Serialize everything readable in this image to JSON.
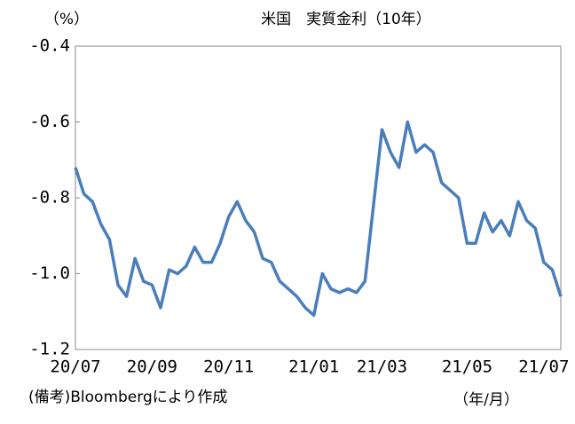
{
  "chart_data": {
    "type": "line",
    "title": "米国　実質金利（10年）",
    "y_unit": "（%）",
    "x_unit": "（年/月）",
    "note": "(備考)Bloombergにより作成",
    "categories": [
      "20/07",
      null,
      null,
      null,
      null,
      null,
      null,
      null,
      null,
      "20/09",
      null,
      null,
      null,
      null,
      null,
      null,
      null,
      null,
      "20/11",
      null,
      null,
      null,
      null,
      null,
      null,
      null,
      null,
      null,
      "21/01",
      null,
      null,
      null,
      null,
      null,
      null,
      null,
      "21/03",
      null,
      null,
      null,
      null,
      null,
      null,
      null,
      null,
      null,
      "21/05",
      null,
      null,
      null,
      null,
      null,
      null,
      null,
      null,
      "21/07",
      null,
      null
    ],
    "series": [
      {
        "name": "米国　実質金利（10年）",
        "color": "#4a7ebb",
        "values": [
          -0.72,
          -0.79,
          -0.81,
          -0.87,
          -0.91,
          -1.03,
          -1.06,
          -0.96,
          -1.02,
          -1.03,
          -1.09,
          -0.99,
          -1.0,
          -0.98,
          -0.93,
          -0.97,
          -0.97,
          -0.92,
          -0.85,
          -0.81,
          -0.86,
          -0.89,
          -0.96,
          -0.97,
          -1.02,
          -1.04,
          -1.06,
          -1.09,
          -1.11,
          -1.0,
          -1.04,
          -1.05,
          -1.04,
          -1.05,
          -1.02,
          -0.82,
          -0.62,
          -0.68,
          -0.72,
          -0.6,
          -0.68,
          -0.66,
          -0.68,
          -0.76,
          -0.78,
          -0.8,
          -0.92,
          -0.92,
          -0.84,
          -0.89,
          -0.86,
          -0.9,
          -0.81,
          -0.86,
          -0.88,
          -0.97,
          -0.99,
          -1.06
        ]
      }
    ],
    "ylim": [
      -1.2,
      -0.4
    ],
    "yticks": [
      -0.4,
      -0.6,
      -0.8,
      {
        "value": -1,
        "label": "-1.0"
      },
      -1.2
    ],
    "grid": false
  }
}
